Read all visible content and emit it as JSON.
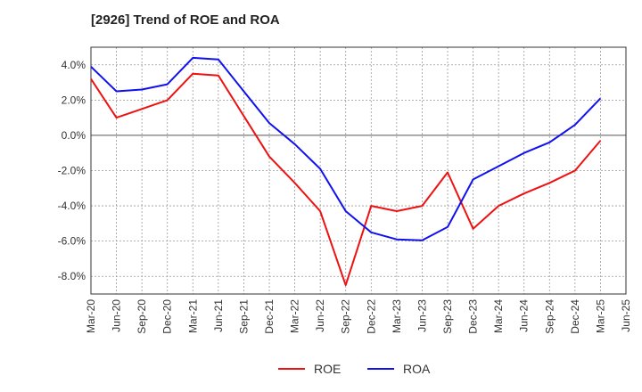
{
  "chart_data": {
    "type": "line",
    "title": "[2926]  Trend of ROE and ROA",
    "xlabel": "",
    "ylabel": "",
    "x": [
      "Mar-20",
      "Jun-20",
      "Sep-20",
      "Dec-20",
      "Mar-21",
      "Jun-21",
      "Sep-21",
      "Dec-21",
      "Mar-22",
      "Jun-22",
      "Sep-22",
      "Dec-22",
      "Mar-23",
      "Jun-23",
      "Sep-23",
      "Dec-23",
      "Mar-24",
      "Jun-24",
      "Sep-24",
      "Dec-24",
      "Mar-25",
      "Jun-25"
    ],
    "ylim": [
      -9.0,
      5.0
    ],
    "yticks": [
      4.0,
      2.0,
      0.0,
      -2.0,
      -4.0,
      -6.0,
      -8.0
    ],
    "ytick_labels": [
      "4.0%",
      "2.0%",
      "0.0%",
      "-2.0%",
      "-4.0%",
      "-6.0%",
      "-8.0%"
    ],
    "grid": true,
    "legend_position": "bottom-center",
    "series": [
      {
        "name": "ROE",
        "color": "#ee1111",
        "values": [
          3.2,
          1.0,
          1.5,
          2.0,
          3.5,
          3.4,
          1.1,
          -1.2,
          -2.7,
          -4.3,
          -8.5,
          -4.0,
          -4.3,
          -4.0,
          -2.1,
          -5.3,
          -4.0,
          -3.3,
          -2.7,
          -2.0,
          -0.3,
          null
        ]
      },
      {
        "name": "ROA",
        "color": "#1111ee",
        "values": [
          3.9,
          2.5,
          2.6,
          2.9,
          4.4,
          4.3,
          2.5,
          0.7,
          -0.5,
          -1.9,
          -4.3,
          -5.5,
          -5.9,
          -5.95,
          -5.2,
          -2.5,
          -1.75,
          -1.0,
          -0.4,
          0.6,
          2.1,
          null
        ]
      }
    ]
  }
}
